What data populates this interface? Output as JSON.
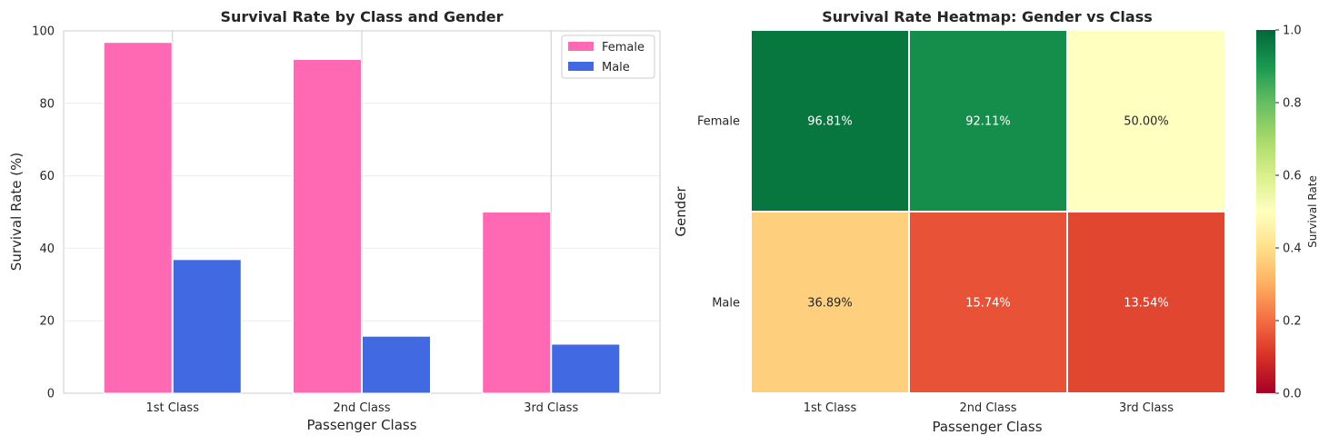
{
  "chart_data": [
    {
      "type": "bar",
      "title": "Survival Rate by Class and Gender",
      "xlabel": "Passenger Class",
      "ylabel": "Survival Rate (%)",
      "categories": [
        "1st Class",
        "2nd Class",
        "3rd Class"
      ],
      "ylim": [
        0,
        100
      ],
      "yticks": [
        0,
        20,
        40,
        60,
        80,
        100
      ],
      "grid": true,
      "legend_position": "top-right",
      "series": [
        {
          "name": "Female",
          "color": "#FF69B4",
          "values": [
            96.81,
            92.11,
            50.0
          ]
        },
        {
          "name": "Male",
          "color": "#4169E1",
          "values": [
            36.89,
            15.74,
            13.54
          ]
        }
      ]
    },
    {
      "type": "heatmap",
      "title": "Survival Rate Heatmap: Gender vs Class",
      "xlabel": "Passenger Class",
      "ylabel": "Gender",
      "columns": [
        "1st Class",
        "2nd Class",
        "3rd Class"
      ],
      "rows": [
        "Female",
        "Male"
      ],
      "values": [
        [
          0.9681,
          0.9211,
          0.5
        ],
        [
          0.3689,
          0.1574,
          0.1354
        ]
      ],
      "annotations": [
        [
          "96.81%",
          "92.11%",
          "50.00%"
        ],
        [
          "36.89%",
          "15.74%",
          "13.54%"
        ]
      ],
      "colormap": "RdYlGn",
      "colorbar": {
        "label": "Survival Rate",
        "range": [
          0,
          1
        ],
        "ticks": [
          "0.0",
          "0.2",
          "0.4",
          "0.6",
          "0.8",
          "1.0"
        ]
      }
    }
  ]
}
